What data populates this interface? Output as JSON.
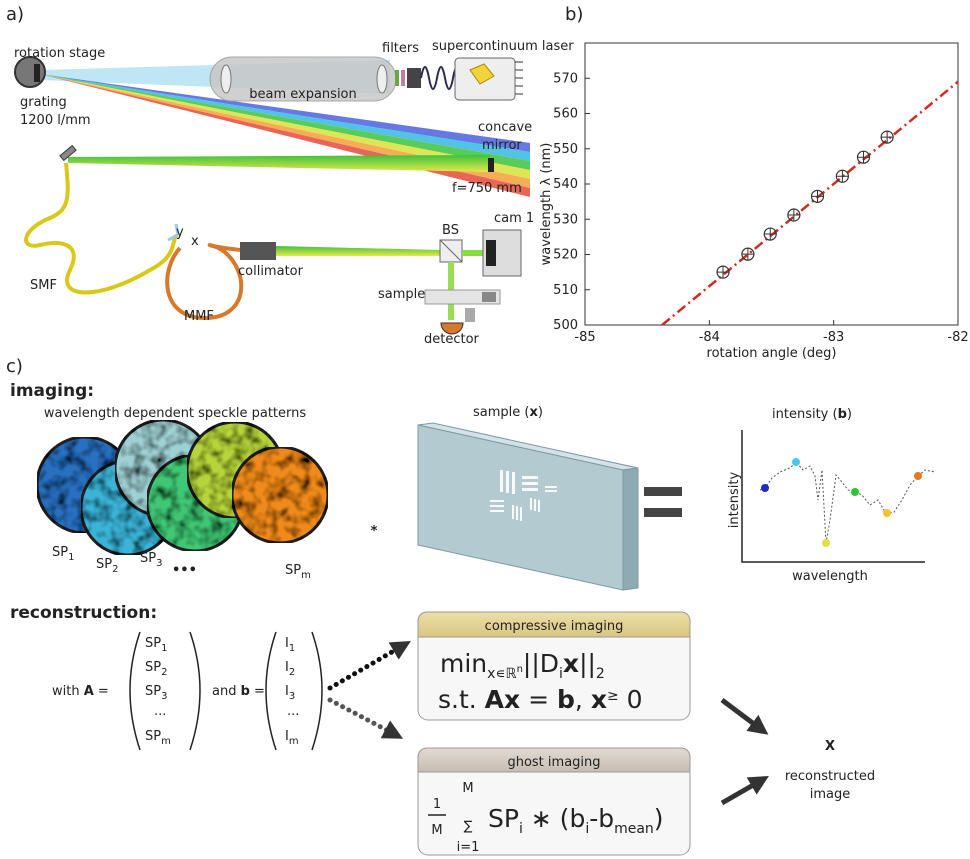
{
  "panel_labels": [
    "a)",
    "b)",
    "c)"
  ],
  "setup": {
    "rotation_stage": "rotation stage",
    "grating": "grating",
    "grating_lines": "1200 l/mm",
    "filters": "filters",
    "laser": "supercontinuum laser",
    "beam_expansion": "beam expansion",
    "mirror": [
      "concave",
      "mirror"
    ],
    "focal_length": "f=750 mm",
    "camera": "cam 1",
    "beam_splitter": "BS",
    "axis_y": "y",
    "axis_x": "x",
    "smf": "SMF",
    "collimator": "collimator",
    "mmf": "MMF",
    "sample": "sample",
    "detector": "detector"
  },
  "chart_data": {
    "type": "scatter",
    "x_label": "rotation angle (deg)",
    "y_label": "wavelength λ (nm)",
    "xlim": [
      -85,
      -82
    ],
    "ylim": [
      500,
      580
    ],
    "xticks": [
      -85,
      -84,
      -83,
      -82
    ],
    "yticks": [
      500,
      510,
      520,
      530,
      540,
      550,
      560,
      570
    ],
    "grid": false,
    "series": [
      {
        "mode": "line",
        "dash": "dash-dot",
        "color": "#d42a1e",
        "x": [
          -84.38,
          -82
        ],
        "values": [
          500,
          569
        ]
      },
      {
        "mode": "markers",
        "color": "#333333",
        "x": [
          -83.89,
          -83.69,
          -83.51,
          -83.32,
          -83.13,
          -82.93,
          -82.76,
          -82.57
        ],
        "values": [
          515,
          520.1,
          525.8,
          531.2,
          536.5,
          542.2,
          547.6,
          553.3
        ]
      }
    ]
  },
  "imaging": {
    "heading": "imaging:",
    "speckle_title": "wavelength dependent speckle patterns",
    "speckle_labels": [
      [
        "SP",
        "1"
      ],
      [
        "SP",
        "2"
      ],
      [
        "SP",
        "3"
      ],
      [
        "SP",
        "m"
      ]
    ],
    "ellipsis": "•••",
    "operator": "*",
    "sample_title": [
      "sample (",
      "x",
      ")"
    ],
    "intensity_title": [
      "intensity (",
      "b",
      ")"
    ],
    "intensity_axis_y": "intensity",
    "intensity_axis_x": "wavelength"
  },
  "reconstruction": {
    "heading": "reconstruction:",
    "matrix_a": {
      "prefix": [
        "with ",
        "A",
        " ="
      ],
      "entries": [
        [
          "SP",
          "1"
        ],
        [
          "SP",
          "2"
        ],
        [
          "SP",
          "3"
        ],
        [
          "..."
        ],
        [
          "SP",
          "m"
        ]
      ]
    },
    "vector_b": {
      "prefix": [
        "and ",
        "b",
        " ="
      ],
      "entries": [
        [
          "I",
          "1"
        ],
        [
          "I",
          "2"
        ],
        [
          "I",
          "3"
        ],
        [
          "..."
        ],
        [
          "I",
          "m"
        ]
      ]
    },
    "compressive": {
      "title": "compressive imaging",
      "formula_1": [
        "min",
        "x∊ℝ",
        "n",
        "||D",
        "i",
        "x",
        "||",
        "2"
      ],
      "formula_2": [
        "s.t. ",
        "Ax",
        " = ",
        "b",
        ", ",
        "x",
        "≥",
        "  0"
      ]
    },
    "ghost": {
      "title": "ghost imaging",
      "fraction": [
        "1",
        "M"
      ],
      "sum": [
        "M",
        "∑",
        "i=1"
      ],
      "term": [
        "SP",
        "i",
        " ∗ (b",
        "i",
        "-b",
        "mean",
        ")"
      ]
    },
    "result": {
      "symbol": "X",
      "caption": [
        "reconstructed",
        "image"
      ]
    }
  }
}
